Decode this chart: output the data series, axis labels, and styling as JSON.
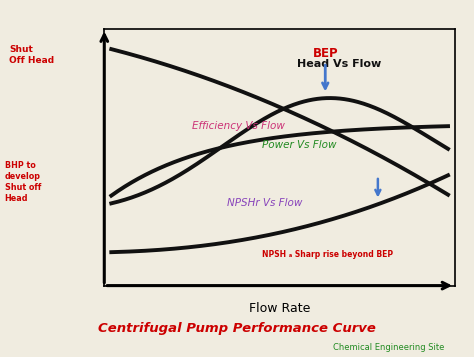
{
  "title": "Centrifugal Pump Performance Curve",
  "subtitle": "Chemical Engineering Site",
  "xlabel": "Flow Rate",
  "head_label": "Head Vs Flow",
  "efficiency_label": "Efficiency Vs Flow",
  "power_label": "Power Vs Flow",
  "npshr_label": "NPSHr Vs Flow",
  "bep_label": "BEP",
  "shut_off_head_label": "Shut\nOff Head",
  "bhp_label": "BHP to\ndevelop\nShut off\nHead",
  "npsh_sharp_label": "NPSH ₐ Sharp rise beyond BEP",
  "bg_color": "#f0ece0",
  "title_color": "#cc0000",
  "subtitle_color": "#228B22",
  "curve_color": "#111111",
  "head_label_color": "#111111",
  "efficiency_label_color": "#cc3377",
  "power_label_color": "#228B22",
  "npshr_label_color": "#8844bb",
  "bep_color": "#cc0000",
  "shut_off_color": "#cc0000",
  "bhp_color": "#cc0000",
  "npsh_sharp_color": "#cc0000",
  "arrow_color": "#4477cc"
}
